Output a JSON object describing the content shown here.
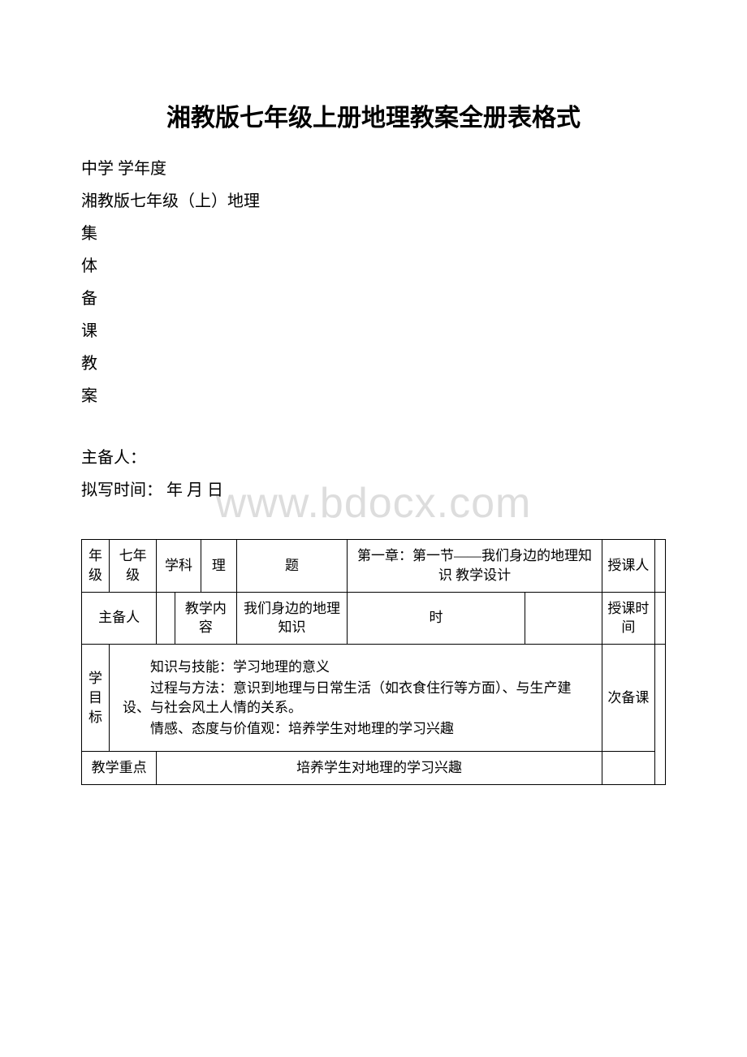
{
  "watermark": "www.bdocx.com",
  "title": "湘教版七年级上册地理教案全册表格式",
  "header": {
    "school_year": "中学 学年度",
    "edition": "湘教版七年级（上）地理",
    "vertical": [
      "集",
      "体",
      "备",
      "课",
      "教",
      "案"
    ],
    "preparer_label": "主备人：",
    "draft_time_label": "拟写时间：  年  月  日"
  },
  "table": {
    "row1": {
      "grade_label": "年级",
      "grade_value": "七年级",
      "subject_label": "学科",
      "subject_value": "理",
      "topic_label": "题",
      "topic_value": "第一章：第一节——我们身边的地理知识 教学设计",
      "teacher_label": "授课人"
    },
    "row2": {
      "preparer_label": "主备人",
      "content_label": "教学内容",
      "content_value": "我们身边的地理知识",
      "hours_label": "时",
      "teachtime_label": "授课时间"
    },
    "row3": {
      "goal_label": "学目标",
      "skill": "知识与技能：学习地理的意义",
      "process": "过程与方法：意识到地理与日常生活（如衣食住行等方面）、与生产建设、与社会风土人情的关系。",
      "attitude": "情感、态度与价值观：培养学生对地理的学习兴趣",
      "secondary_label": "次备课"
    },
    "row4": {
      "keypoint_label": "教学重点",
      "keypoint_value": "培养学生对地理的学习兴趣"
    }
  }
}
